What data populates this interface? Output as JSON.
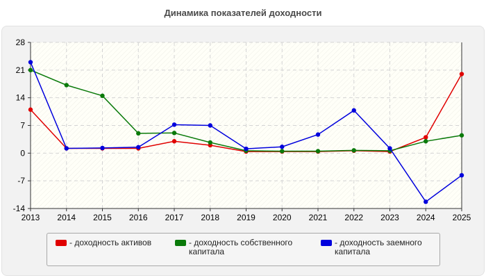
{
  "chart_data": {
    "type": "line",
    "title": "Динамика показателей доходности",
    "xlabel": "",
    "ylabel": "",
    "categories": [
      "2013",
      "2014",
      "2015",
      "2016",
      "2017",
      "2018",
      "2019",
      "2020",
      "2021",
      "2022",
      "2023",
      "2024",
      "2025"
    ],
    "ylim": [
      -14,
      28
    ],
    "yticks": [
      28,
      21,
      14,
      7,
      0,
      -7,
      -14
    ],
    "grid": true,
    "legend_position": "bottom",
    "series": [
      {
        "name": "- доходность активов",
        "color": "#e00000",
        "values": [
          11.0,
          1.2,
          1.2,
          1.2,
          3.0,
          2.0,
          0.4,
          0.4,
          0.4,
          0.6,
          0.4,
          4.0,
          20.0
        ]
      },
      {
        "name": "- доходность собственного капитала",
        "color": "#0a7a0a",
        "values": [
          21.0,
          17.2,
          14.5,
          5.0,
          5.1,
          2.7,
          0.6,
          0.5,
          0.5,
          0.7,
          0.6,
          3.0,
          4.5
        ]
      },
      {
        "name": "- доходность заемного капитала",
        "color": "#0000dd",
        "values": [
          23.0,
          1.2,
          1.3,
          1.5,
          7.2,
          7.0,
          1.1,
          1.6,
          4.7,
          10.8,
          1.2,
          -12.3,
          -5.6
        ]
      }
    ]
  }
}
